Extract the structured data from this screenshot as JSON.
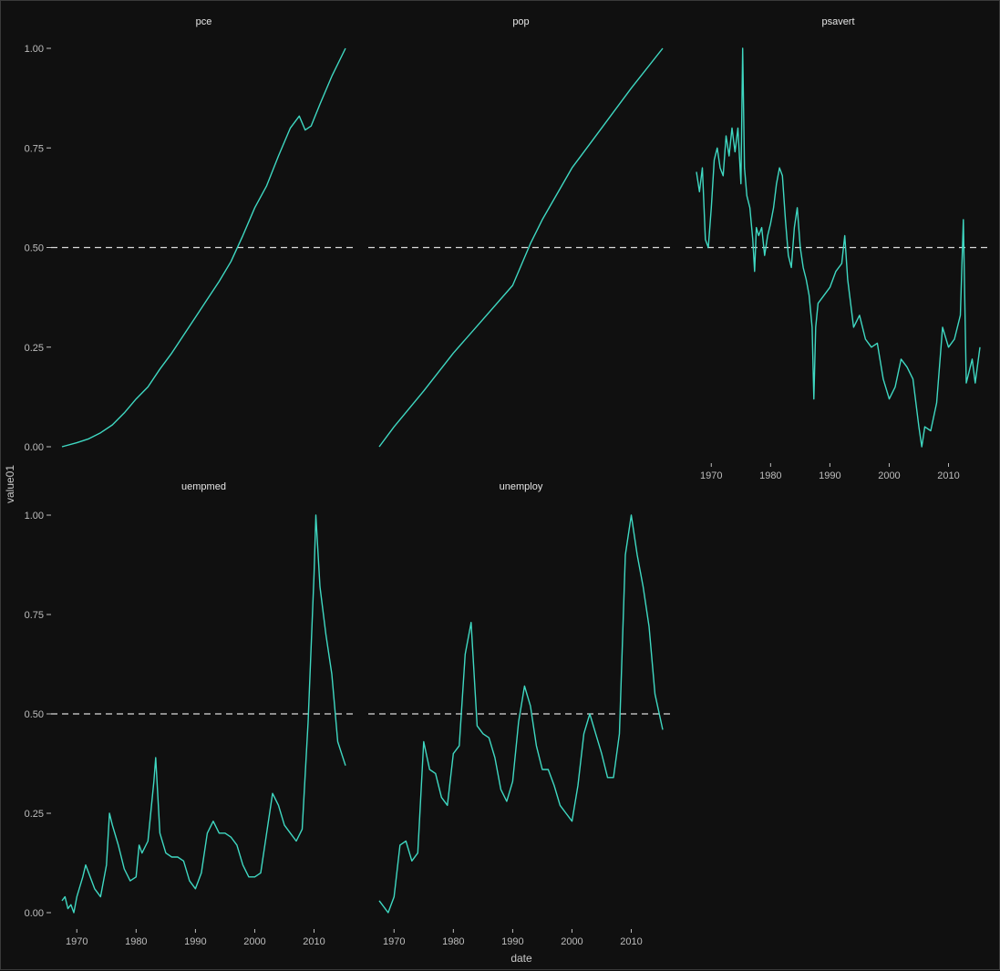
{
  "chart_data": {
    "type": "line",
    "facet_by": "variable",
    "layout": "3 columns x 2 rows, free x scales per panel, shared y scale",
    "xlabel": "date",
    "ylabel": "value01",
    "ylim": [
      0,
      1
    ],
    "xlim": [
      1967.5,
      2015.3
    ],
    "y_ticks": [
      0,
      0.25,
      0.5,
      0.75,
      1.0
    ],
    "y_tick_labels": [
      "0.00",
      "0.25",
      "0.50",
      "0.75",
      "1.00"
    ],
    "x_ticks": [
      1970,
      1980,
      1990,
      2000,
      2010
    ],
    "reference_line": {
      "y": 0.5,
      "style": "dashed"
    },
    "line_color": "#3fd8c2",
    "reference_color": "#d9d9d9",
    "background": "#101010",
    "grid": false,
    "panels": [
      {
        "name": "pce",
        "show_x_axis": false,
        "points": [
          [
            1967.5,
            0.0
          ],
          [
            1970,
            0.01
          ],
          [
            1972,
            0.02
          ],
          [
            1974,
            0.035
          ],
          [
            1976,
            0.055
          ],
          [
            1978,
            0.085
          ],
          [
            1980,
            0.12
          ],
          [
            1982,
            0.15
          ],
          [
            1984,
            0.195
          ],
          [
            1986,
            0.235
          ],
          [
            1988,
            0.28
          ],
          [
            1990,
            0.325
          ],
          [
            1992,
            0.37
          ],
          [
            1994,
            0.415
          ],
          [
            1996,
            0.465
          ],
          [
            1998,
            0.53
          ],
          [
            2000,
            0.6
          ],
          [
            2002,
            0.655
          ],
          [
            2004,
            0.73
          ],
          [
            2006,
            0.8
          ],
          [
            2007.5,
            0.83
          ],
          [
            2008.5,
            0.795
          ],
          [
            2009.5,
            0.805
          ],
          [
            2011,
            0.86
          ],
          [
            2013,
            0.93
          ],
          [
            2015.3,
            1.0
          ]
        ]
      },
      {
        "name": "pop",
        "show_x_axis": false,
        "points": [
          [
            1967.5,
            0.0
          ],
          [
            1970,
            0.05
          ],
          [
            1975,
            0.14
          ],
          [
            1980,
            0.235
          ],
          [
            1985,
            0.32
          ],
          [
            1990,
            0.405
          ],
          [
            1993,
            0.51
          ],
          [
            1995,
            0.57
          ],
          [
            2000,
            0.7
          ],
          [
            2005,
            0.8
          ],
          [
            2010,
            0.9
          ],
          [
            2015.3,
            1.0
          ]
        ]
      },
      {
        "name": "psavert",
        "show_x_axis": true,
        "points": [
          [
            1967.5,
            0.69
          ],
          [
            1968,
            0.64
          ],
          [
            1968.5,
            0.7
          ],
          [
            1969,
            0.52
          ],
          [
            1969.5,
            0.5
          ],
          [
            1970,
            0.6
          ],
          [
            1970.5,
            0.72
          ],
          [
            1971,
            0.75
          ],
          [
            1971.5,
            0.7
          ],
          [
            1972,
            0.68
          ],
          [
            1972.5,
            0.78
          ],
          [
            1973,
            0.73
          ],
          [
            1973.5,
            0.8
          ],
          [
            1974,
            0.74
          ],
          [
            1974.5,
            0.8
          ],
          [
            1975,
            0.66
          ],
          [
            1975.3,
            1.0
          ],
          [
            1975.6,
            0.7
          ],
          [
            1976,
            0.63
          ],
          [
            1976.5,
            0.6
          ],
          [
            1977,
            0.52
          ],
          [
            1977.3,
            0.44
          ],
          [
            1977.6,
            0.55
          ],
          [
            1978,
            0.53
          ],
          [
            1978.5,
            0.55
          ],
          [
            1979,
            0.48
          ],
          [
            1979.5,
            0.53
          ],
          [
            1980,
            0.56
          ],
          [
            1980.5,
            0.6
          ],
          [
            1981,
            0.66
          ],
          [
            1981.5,
            0.7
          ],
          [
            1982,
            0.68
          ],
          [
            1982.5,
            0.57
          ],
          [
            1983,
            0.48
          ],
          [
            1983.5,
            0.45
          ],
          [
            1984,
            0.55
          ],
          [
            1984.5,
            0.6
          ],
          [
            1985,
            0.5
          ],
          [
            1985.5,
            0.45
          ],
          [
            1986,
            0.42
          ],
          [
            1986.5,
            0.38
          ],
          [
            1987,
            0.3
          ],
          [
            1987.3,
            0.12
          ],
          [
            1987.6,
            0.3
          ],
          [
            1988,
            0.36
          ],
          [
            1989,
            0.38
          ],
          [
            1990,
            0.4
          ],
          [
            1991,
            0.44
          ],
          [
            1992,
            0.46
          ],
          [
            1992.5,
            0.53
          ],
          [
            1993,
            0.42
          ],
          [
            1994,
            0.3
          ],
          [
            1995,
            0.33
          ],
          [
            1996,
            0.27
          ],
          [
            1997,
            0.25
          ],
          [
            1998,
            0.26
          ],
          [
            1999,
            0.17
          ],
          [
            2000,
            0.12
          ],
          [
            2001,
            0.15
          ],
          [
            2002,
            0.22
          ],
          [
            2003,
            0.2
          ],
          [
            2004,
            0.17
          ],
          [
            2005,
            0.05
          ],
          [
            2005.5,
            0.0
          ],
          [
            2006,
            0.05
          ],
          [
            2007,
            0.04
          ],
          [
            2008,
            0.11
          ],
          [
            2009,
            0.3
          ],
          [
            2010,
            0.25
          ],
          [
            2011,
            0.27
          ],
          [
            2012,
            0.33
          ],
          [
            2012.5,
            0.57
          ],
          [
            2013,
            0.16
          ],
          [
            2014,
            0.22
          ],
          [
            2014.5,
            0.16
          ],
          [
            2015.3,
            0.25
          ]
        ]
      },
      {
        "name": "uempmed",
        "show_x_axis": true,
        "points": [
          [
            1967.5,
            0.03
          ],
          [
            1968,
            0.04
          ],
          [
            1968.5,
            0.01
          ],
          [
            1969,
            0.02
          ],
          [
            1969.5,
            0.0
          ],
          [
            1970,
            0.04
          ],
          [
            1971,
            0.09
          ],
          [
            1971.5,
            0.12
          ],
          [
            1972,
            0.1
          ],
          [
            1973,
            0.06
          ],
          [
            1974,
            0.04
          ],
          [
            1975,
            0.12
          ],
          [
            1975.5,
            0.25
          ],
          [
            1976,
            0.22
          ],
          [
            1977,
            0.17
          ],
          [
            1978,
            0.11
          ],
          [
            1979,
            0.08
          ],
          [
            1980,
            0.09
          ],
          [
            1980.5,
            0.17
          ],
          [
            1981,
            0.15
          ],
          [
            1982,
            0.18
          ],
          [
            1983,
            0.33
          ],
          [
            1983.3,
            0.39
          ],
          [
            1984,
            0.2
          ],
          [
            1985,
            0.15
          ],
          [
            1986,
            0.14
          ],
          [
            1987,
            0.14
          ],
          [
            1988,
            0.13
          ],
          [
            1989,
            0.08
          ],
          [
            1990,
            0.06
          ],
          [
            1991,
            0.1
          ],
          [
            1992,
            0.2
          ],
          [
            1993,
            0.23
          ],
          [
            1994,
            0.2
          ],
          [
            1995,
            0.2
          ],
          [
            1996,
            0.19
          ],
          [
            1997,
            0.17
          ],
          [
            1998,
            0.12
          ],
          [
            1999,
            0.09
          ],
          [
            2000,
            0.09
          ],
          [
            2001,
            0.1
          ],
          [
            2002,
            0.2
          ],
          [
            2003,
            0.3
          ],
          [
            2004,
            0.27
          ],
          [
            2005,
            0.22
          ],
          [
            2006,
            0.2
          ],
          [
            2007,
            0.18
          ],
          [
            2008,
            0.21
          ],
          [
            2009,
            0.48
          ],
          [
            2010,
            0.85
          ],
          [
            2010.3,
            1.0
          ],
          [
            2011,
            0.82
          ],
          [
            2012,
            0.7
          ],
          [
            2013,
            0.6
          ],
          [
            2014,
            0.43
          ],
          [
            2015.3,
            0.37
          ]
        ]
      },
      {
        "name": "unemploy",
        "show_x_axis": true,
        "points": [
          [
            1967.5,
            0.03
          ],
          [
            1968,
            0.02
          ],
          [
            1969,
            0.0
          ],
          [
            1970,
            0.04
          ],
          [
            1971,
            0.17
          ],
          [
            1972,
            0.18
          ],
          [
            1973,
            0.13
          ],
          [
            1974,
            0.15
          ],
          [
            1975,
            0.43
          ],
          [
            1976,
            0.36
          ],
          [
            1977,
            0.35
          ],
          [
            1978,
            0.29
          ],
          [
            1979,
            0.27
          ],
          [
            1980,
            0.4
          ],
          [
            1981,
            0.42
          ],
          [
            1982,
            0.65
          ],
          [
            1983,
            0.73
          ],
          [
            1984,
            0.47
          ],
          [
            1985,
            0.45
          ],
          [
            1986,
            0.44
          ],
          [
            1987,
            0.39
          ],
          [
            1988,
            0.31
          ],
          [
            1989,
            0.28
          ],
          [
            1990,
            0.33
          ],
          [
            1991,
            0.48
          ],
          [
            1992,
            0.57
          ],
          [
            1993,
            0.52
          ],
          [
            1994,
            0.42
          ],
          [
            1995,
            0.36
          ],
          [
            1996,
            0.36
          ],
          [
            1997,
            0.32
          ],
          [
            1998,
            0.27
          ],
          [
            1999,
            0.25
          ],
          [
            2000,
            0.23
          ],
          [
            2001,
            0.32
          ],
          [
            2002,
            0.45
          ],
          [
            2003,
            0.5
          ],
          [
            2004,
            0.45
          ],
          [
            2005,
            0.4
          ],
          [
            2006,
            0.34
          ],
          [
            2007,
            0.34
          ],
          [
            2008,
            0.45
          ],
          [
            2009,
            0.9
          ],
          [
            2010,
            1.0
          ],
          [
            2011,
            0.9
          ],
          [
            2012,
            0.82
          ],
          [
            2013,
            0.72
          ],
          [
            2014,
            0.55
          ],
          [
            2015.3,
            0.46
          ]
        ]
      }
    ]
  }
}
